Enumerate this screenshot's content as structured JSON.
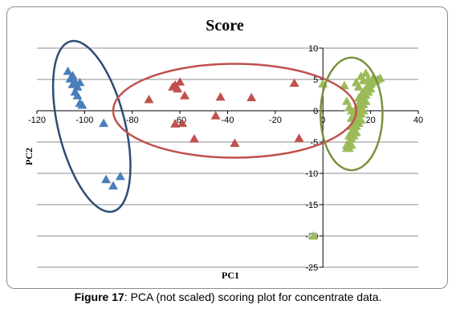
{
  "chart_data": {
    "type": "scatter",
    "title": "Score",
    "xlabel": "PC1",
    "ylabel": "PC2",
    "xlim": [
      -120,
      40
    ],
    "ylim": [
      -25,
      10
    ],
    "xticks": [
      -120,
      -100,
      -80,
      -60,
      -40,
      -20,
      0,
      20,
      40
    ],
    "yticks": [
      10,
      5,
      0,
      -5,
      -10,
      -15,
      -20,
      -25
    ],
    "tick_labels_x": [
      "-120",
      "-100",
      "-80",
      "-60",
      "-40",
      "-20",
      "0",
      "20",
      "40"
    ],
    "tick_labels_y": [
      "10",
      "5",
      "0",
      "-5",
      "-10",
      "-15",
      "-20",
      "-25"
    ],
    "marker": "triangle",
    "series": [
      {
        "color": "#4a7ebb",
        "x": [
          -107,
          -106,
          -105,
          -104,
          -103,
          -102,
          -104,
          -103,
          -105,
          -102,
          -101,
          -92,
          -91,
          -88,
          -85
        ],
        "y": [
          6.3,
          5.1,
          5.6,
          4.6,
          3.8,
          4.5,
          3.0,
          2.4,
          4.2,
          1.2,
          0.9,
          -2.0,
          -11.0,
          -12.0,
          -10.5
        ]
      },
      {
        "color": "#c0504d",
        "x": [
          -73,
          -63,
          -62,
          -61,
          -60,
          -58,
          -62,
          -59,
          -54,
          -45,
          -43,
          -37,
          -30,
          -12,
          -10
        ],
        "y": [
          1.8,
          3.8,
          4.1,
          3.5,
          4.6,
          2.4,
          -2.1,
          -2.0,
          -4.5,
          -0.8,
          2.2,
          -5.2,
          2.1,
          4.4,
          -4.4
        ]
      },
      {
        "color": "#9bbb59",
        "x": [
          0,
          9,
          10,
          11,
          12,
          13,
          12,
          14,
          15,
          16,
          17,
          18,
          19,
          20,
          21,
          22,
          23,
          24,
          15,
          16,
          17,
          18,
          19,
          20,
          21,
          14,
          15,
          16,
          17,
          18,
          19,
          20,
          13,
          14,
          15,
          16,
          17,
          18,
          12,
          13,
          14,
          15,
          16,
          17,
          11,
          12,
          13,
          14,
          15,
          16,
          10,
          11,
          12,
          13,
          14,
          10,
          11,
          12,
          -4
        ],
        "y": [
          4.3,
          4.0,
          1.5,
          0.5,
          0.0,
          -0.5,
          -1.2,
          4.5,
          3.8,
          5.5,
          4.8,
          6.0,
          5.0,
          4.5,
          5.2,
          4.8,
          5.0,
          5.2,
          2.0,
          2.5,
          3.0,
          3.5,
          4.0,
          4.2,
          4.6,
          0.5,
          1.0,
          1.5,
          2.0,
          2.5,
          3.0,
          3.5,
          -1.0,
          -0.5,
          0.0,
          0.5,
          1.0,
          1.5,
          -2.5,
          -2.0,
          -1.5,
          -1.0,
          -0.5,
          0.0,
          -4.0,
          -3.5,
          -3.0,
          -2.5,
          -2.0,
          -1.5,
          -5.5,
          -5.0,
          -4.5,
          -4.0,
          -3.5,
          -6.0,
          -6.0,
          -5.5,
          -20.0
        ]
      }
    ],
    "ellipses": [
      {
        "color": "#2c4d75",
        "cx": -97,
        "cy": -2.5,
        "rx": 14,
        "ry": 14.0,
        "angle_deg": -14
      },
      {
        "color": "#c0504d",
        "cx": -37,
        "cy": 0.0,
        "rx": 51,
        "ry": 7.5,
        "angle_deg": 0
      },
      {
        "color": "#77933c",
        "cx": 12,
        "cy": -0.5,
        "rx": 13,
        "ry": 9.0,
        "angle_deg": 0
      }
    ]
  },
  "caption": {
    "label": "Figure 17",
    "text": ": PCA (not scaled) scoring plot for concentrate data."
  }
}
